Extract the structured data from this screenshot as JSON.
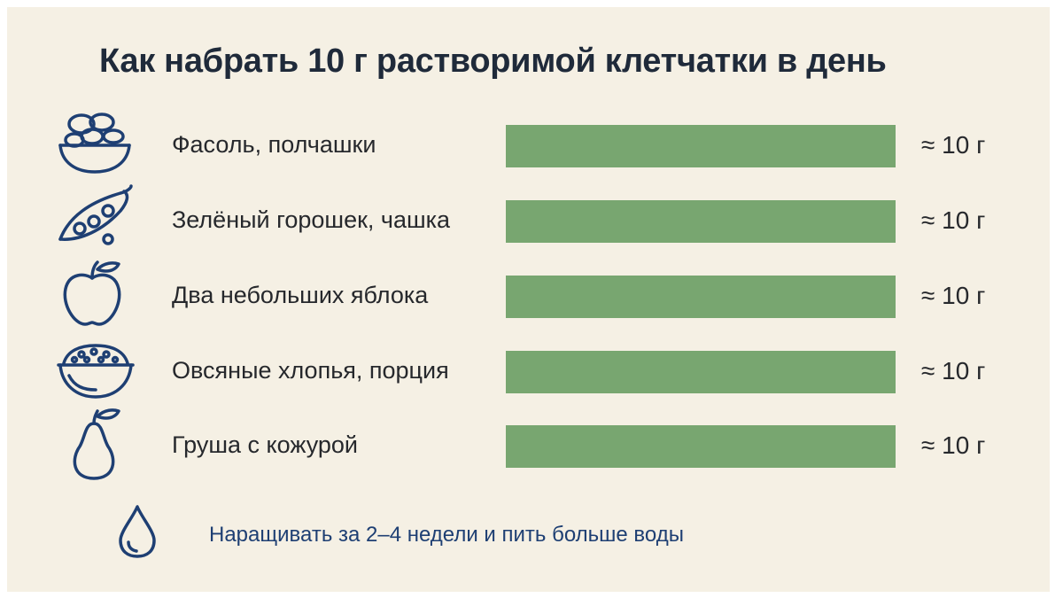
{
  "title": "Как набрать 10 г растворимой клетчатки в день",
  "chart_data": {
    "type": "bar",
    "orientation": "horizontal",
    "categories": [
      "Фасоль, полчашки",
      "Зелёный горошек, чашка",
      "Два небольших яблока",
      "Овсяные хлопья, порция",
      "Груша с кожурой"
    ],
    "values": [
      10,
      10,
      10,
      10,
      10
    ],
    "value_labels": [
      "≈ 10 г",
      "≈ 10 г",
      "≈ 10 г",
      "≈ 10 г",
      "≈ 10 г"
    ],
    "xlim": [
      0,
      10
    ],
    "grid": false
  },
  "rows": [
    {
      "label": "Фасоль, полчашки",
      "icon": "beans-bowl-icon"
    },
    {
      "label": "Зелёный горошек, чашка",
      "icon": "pea-pod-icon"
    },
    {
      "label": "Два небольших яблока",
      "icon": "apple-icon"
    },
    {
      "label": "Овсяные хлопья, порция",
      "icon": "oatmeal-bowl-icon"
    },
    {
      "label": "Груша с кожурой",
      "icon": "pear-icon"
    }
  ],
  "note": {
    "text": "Наращивать за 2–4 недели и пить больше воды",
    "icon": "water-drop-icon"
  },
  "colors": {
    "bar": "#78a670",
    "icon": "#1e3f73",
    "background": "#f5f0e4",
    "title": "#1f2a3a",
    "note": "#1e3f73"
  }
}
